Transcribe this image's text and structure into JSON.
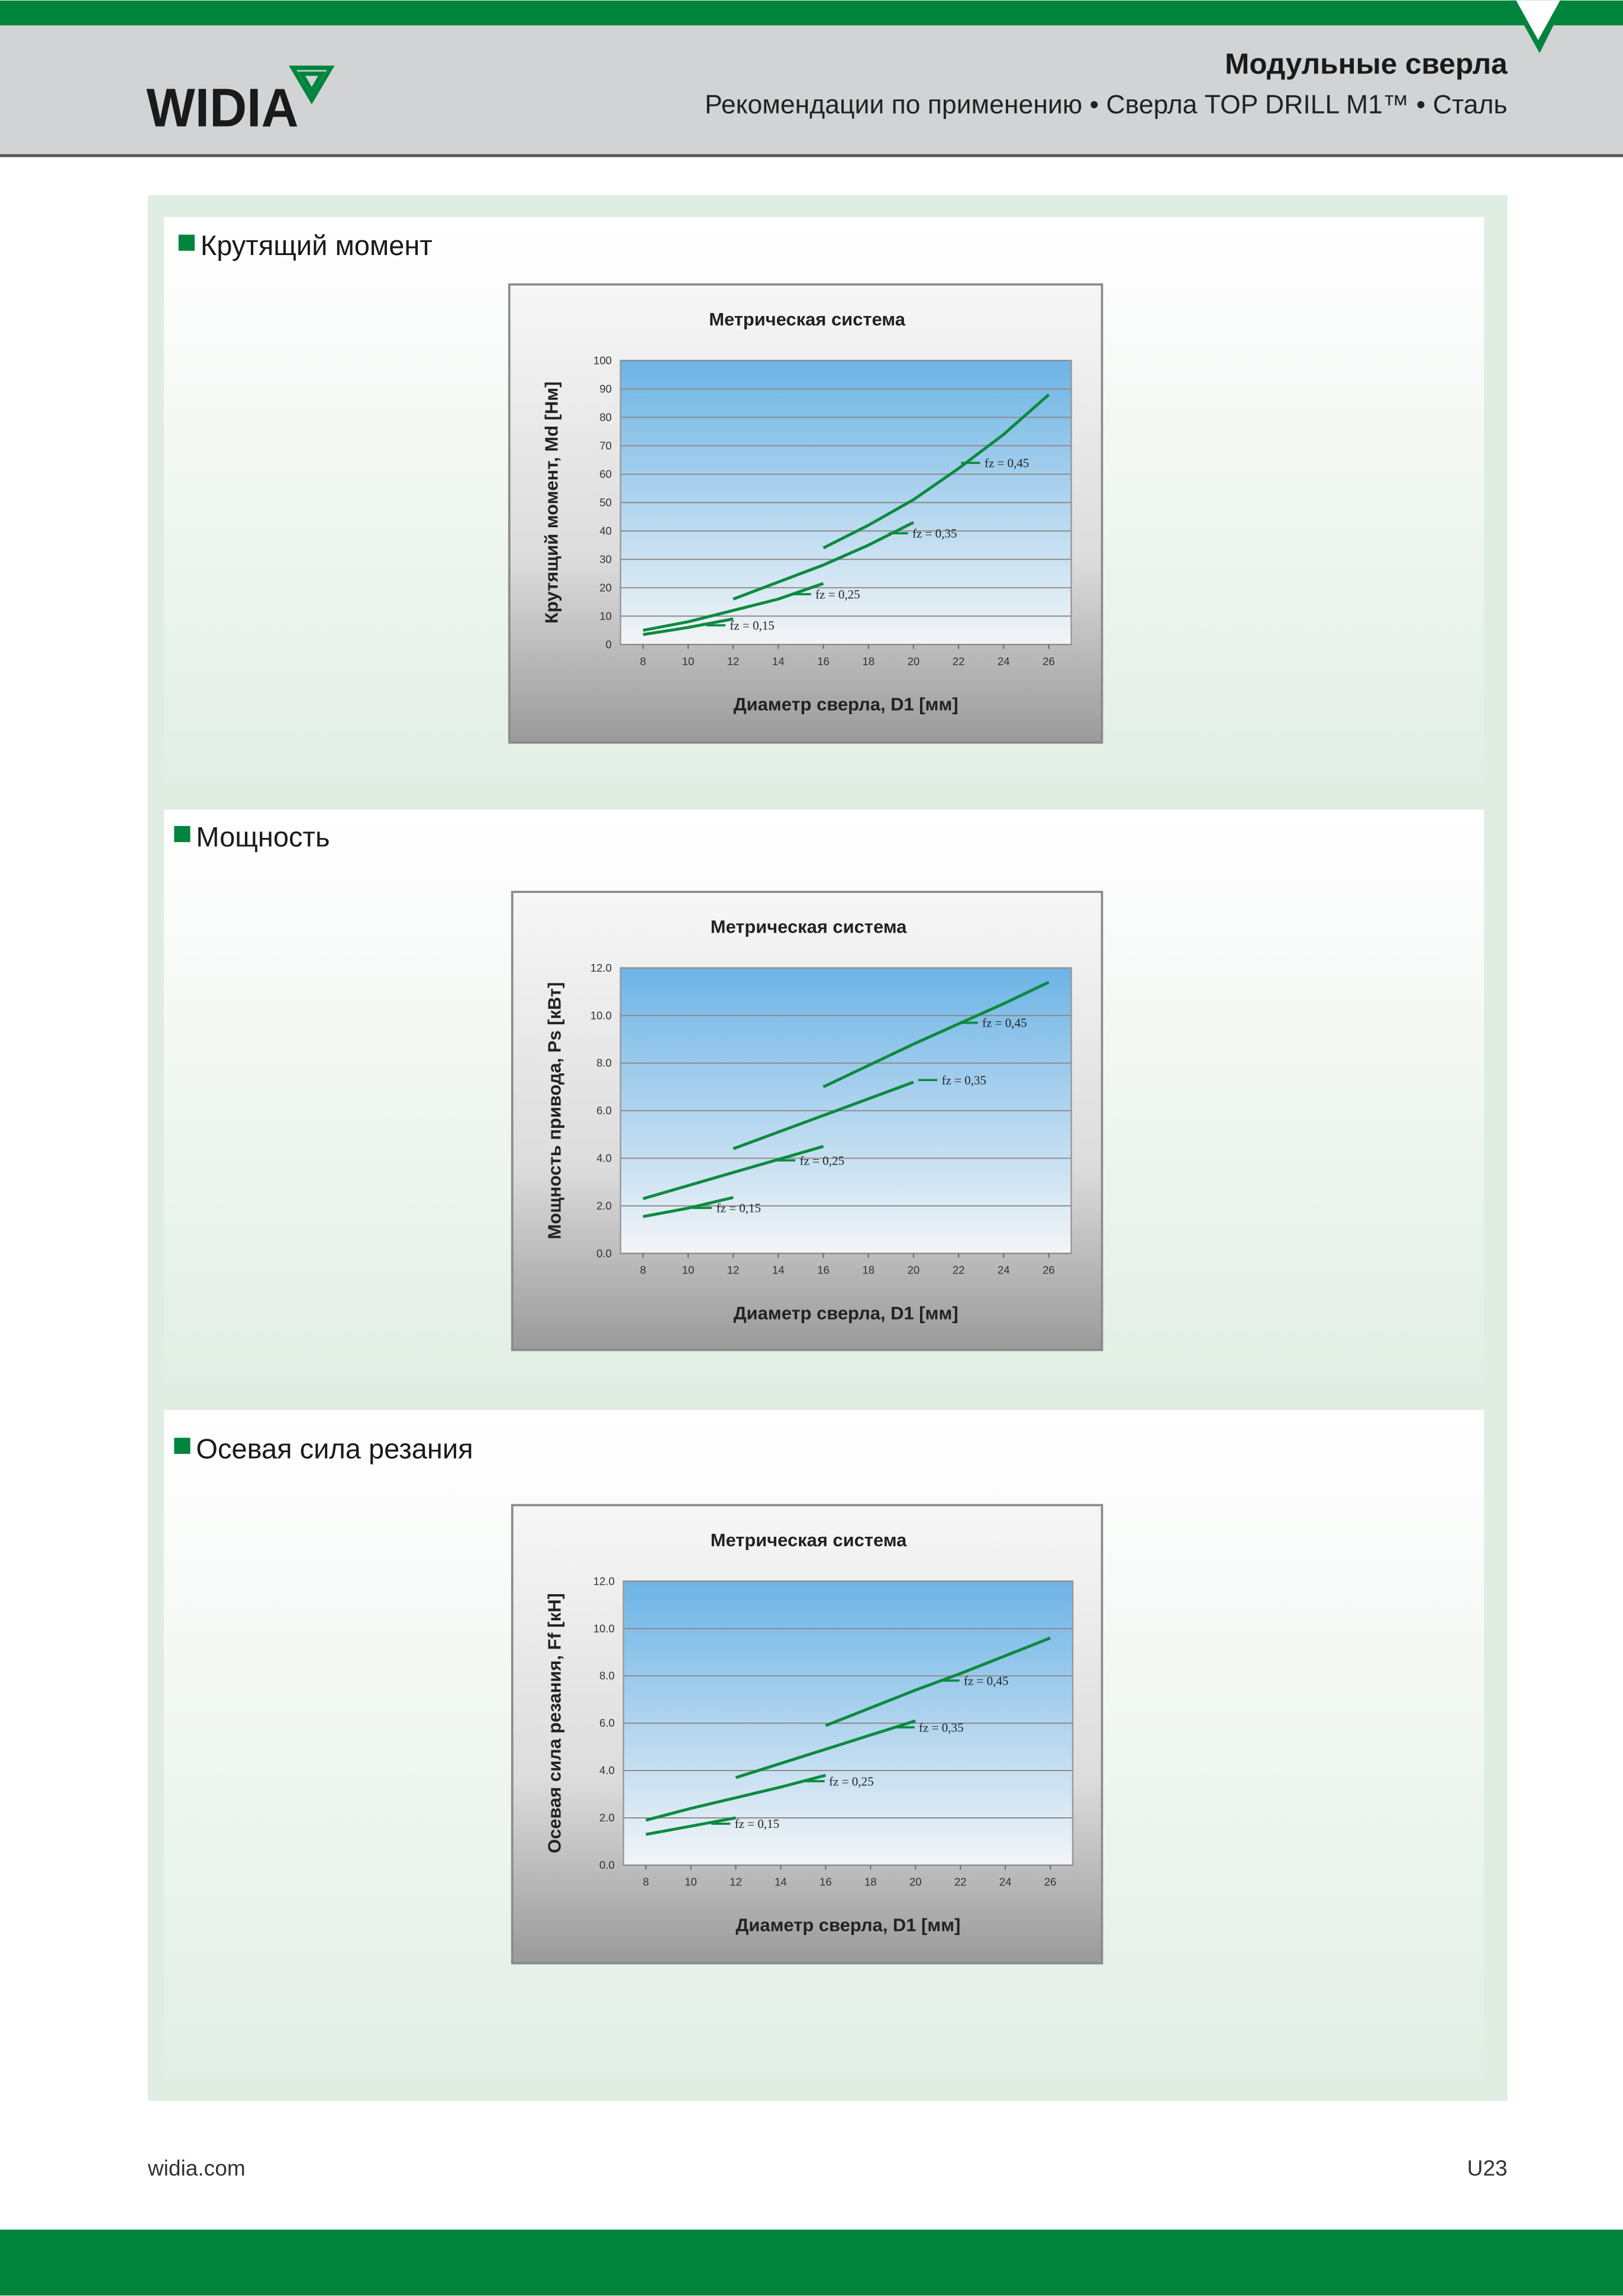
{
  "header": {
    "brand": "WIDIA",
    "title": "Модульные сверла",
    "subtitle": "Рекомендации по применению • Сверла TOP DRILL M1™ • Сталь"
  },
  "footer": {
    "url": "widia.com",
    "page": "U23"
  },
  "chart_data": [
    {
      "type": "line",
      "heading": "Крутящий момент",
      "title": "Метрическая система",
      "x_label": "Диаметр сверла, D1 [мм]",
      "y_label": "Крутящий момент, Md [Нм]",
      "xlim": [
        7,
        27
      ],
      "xticks": [
        8,
        10,
        12,
        14,
        16,
        18,
        20,
        22,
        24,
        26
      ],
      "ylim": [
        0,
        100
      ],
      "yticks": [
        0,
        10,
        20,
        30,
        40,
        50,
        60,
        70,
        80,
        90,
        100
      ],
      "grid": true,
      "series": [
        {
          "name": "fz = 0,15",
          "color": "#0b8a3e",
          "x": [
            8,
            10,
            12
          ],
          "values": [
            3.5,
            6,
            9
          ]
        },
        {
          "name": "fz = 0,25",
          "color": "#0b8a3e",
          "x": [
            8,
            10,
            12,
            14,
            16
          ],
          "values": [
            5,
            8,
            12,
            16,
            21.5
          ]
        },
        {
          "name": "fz = 0,35",
          "color": "#0b8a3e",
          "x": [
            12,
            14,
            16,
            18,
            20
          ],
          "values": [
            16,
            22,
            28,
            35,
            43
          ]
        },
        {
          "name": "fz = 0,45",
          "color": "#0b8a3e",
          "x": [
            16,
            18,
            20,
            22,
            24,
            26
          ],
          "values": [
            34,
            42,
            51,
            62,
            74,
            88
          ]
        }
      ]
    },
    {
      "type": "line",
      "heading": "Мощность",
      "title": "Метрическая система",
      "x_label": "Диаметр сверла, D1 [мм]",
      "y_label": "Мощность привода, Ps [кВт]",
      "xlim": [
        7,
        27
      ],
      "xticks": [
        8,
        10,
        12,
        14,
        16,
        18,
        20,
        22,
        24,
        26
      ],
      "ylim": [
        0,
        12
      ],
      "yticks": [
        {
          "value": 0,
          "label": "0.0"
        },
        {
          "value": 2,
          "label": "2.0"
        },
        {
          "value": 4,
          "label": "4.0"
        },
        {
          "value": 6,
          "label": "6.0"
        },
        {
          "value": 8,
          "label": "8.0"
        },
        {
          "value": 10,
          "label": "10.0"
        },
        {
          "value": 12,
          "label": "12.0"
        }
      ],
      "grid": true,
      "series": [
        {
          "name": "fz = 0,15",
          "color": "#0b8a3e",
          "x": [
            8,
            10,
            12
          ],
          "values": [
            1.55,
            1.9,
            2.35
          ]
        },
        {
          "name": "fz = 0,25",
          "color": "#0b8a3e",
          "x": [
            8,
            10,
            12,
            14,
            16
          ],
          "values": [
            2.3,
            2.85,
            3.4,
            3.95,
            4.5
          ]
        },
        {
          "name": "fz = 0,35",
          "color": "#0b8a3e",
          "x": [
            12,
            14,
            16,
            18,
            20
          ],
          "values": [
            4.4,
            5.1,
            5.8,
            6.5,
            7.2
          ]
        },
        {
          "name": "fz = 0,45",
          "color": "#0b8a3e",
          "x": [
            16,
            18,
            20,
            22,
            24,
            26
          ],
          "values": [
            7,
            7.9,
            8.8,
            9.65,
            10.5,
            11.4
          ]
        }
      ]
    },
    {
      "type": "line",
      "heading": "Осевая сила резания",
      "title": "Метрическая система",
      "x_label": "Диаметр сверла, D1 [мм]",
      "y_label": "Осевая сила резания, Ff [кН]",
      "xlim": [
        7,
        27
      ],
      "xticks": [
        8,
        10,
        12,
        14,
        16,
        18,
        20,
        22,
        24,
        26
      ],
      "ylim": [
        0,
        12
      ],
      "yticks": [
        {
          "value": 0,
          "label": "0.0"
        },
        {
          "value": 2,
          "label": "2.0"
        },
        {
          "value": 4,
          "label": "4.0"
        },
        {
          "value": 6,
          "label": "6.0"
        },
        {
          "value": 8,
          "label": "8.0"
        },
        {
          "value": 10,
          "label": "10.0"
        },
        {
          "value": 12,
          "label": "12.0"
        }
      ],
      "grid": true,
      "series": [
        {
          "name": "fz = 0,15",
          "color": "#0b8a3e",
          "x": [
            8,
            10,
            12
          ],
          "values": [
            1.3,
            1.65,
            2
          ]
        },
        {
          "name": "fz = 0,25",
          "color": "#0b8a3e",
          "x": [
            8,
            10,
            12,
            14,
            16
          ],
          "values": [
            1.9,
            2.4,
            2.85,
            3.3,
            3.8
          ]
        },
        {
          "name": "fz = 0,35",
          "color": "#0b8a3e",
          "x": [
            12,
            14,
            16,
            18,
            20
          ],
          "values": [
            3.7,
            4.3,
            4.9,
            5.5,
            6.1
          ]
        },
        {
          "name": "fz = 0,45",
          "color": "#0b8a3e",
          "x": [
            16,
            18,
            20,
            22,
            24,
            26
          ],
          "values": [
            5.9,
            6.65,
            7.4,
            8.1,
            8.85,
            9.6
          ]
        }
      ]
    }
  ]
}
